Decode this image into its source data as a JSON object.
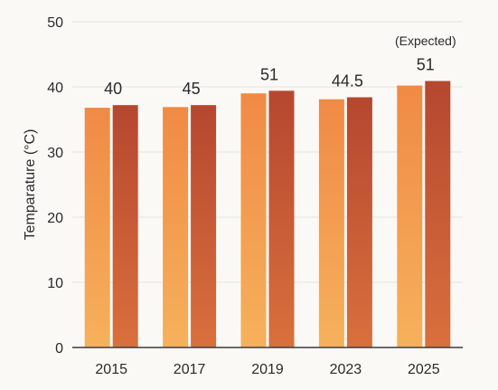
{
  "chart_data": {
    "type": "bar",
    "categories": [
      "2015",
      "2017",
      "2019",
      "2023",
      "2025"
    ],
    "series": [
      {
        "values": [
          36.8,
          36.9,
          39.0,
          38.1,
          40.2
        ]
      },
      {
        "values": [
          37.2,
          37.2,
          39.4,
          38.4,
          40.9
        ]
      }
    ],
    "data_labels": [
      "40",
      "45",
      "51",
      "44.5",
      "51"
    ],
    "annotations": [
      {
        "category": "2025",
        "text": "(Expected)"
      }
    ],
    "title": "",
    "xlabel": "",
    "ylabel": "Temparature (°C)",
    "ylim": [
      0,
      50
    ],
    "yticks": [
      0,
      10,
      20,
      30,
      40,
      50
    ],
    "grid": true,
    "legend": "none",
    "colors": {
      "series_a_top": "#f08a45",
      "series_a_bottom": "#f6b15c",
      "series_b_top": "#b5472f",
      "series_b_bottom": "#d9703d",
      "grid": "#e6e2dc",
      "axis": "#3a3a3a",
      "text": "#2a2a2a",
      "background": "#fbf9f6"
    }
  }
}
